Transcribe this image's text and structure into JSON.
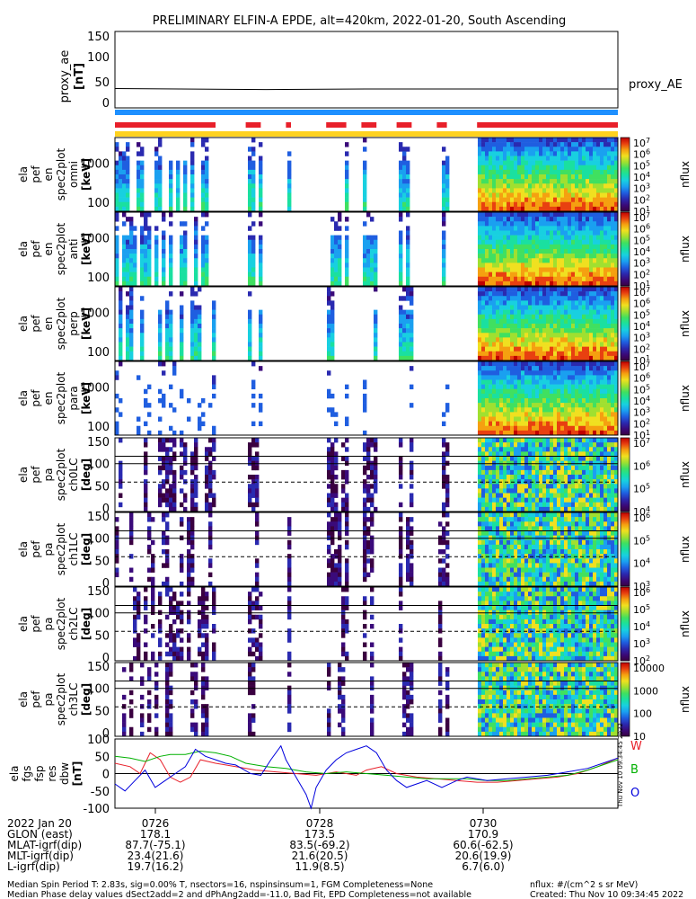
{
  "title": "PRELIMINARY ELFIN-A EPDE, alt=420km, 2022-01-20, South Ascending",
  "proxy_panel": {
    "ylabel": [
      "proxy_ae",
      "[nT]"
    ],
    "yticks": [
      "150",
      "100",
      "50",
      "0"
    ],
    "legend": "proxy_AE",
    "ylim": [
      0,
      150
    ],
    "line_color": "#000000",
    "values": [
      [
        0,
        38
      ],
      [
        0.3,
        36
      ],
      [
        0.5,
        37
      ],
      [
        1,
        37
      ]
    ]
  },
  "status_bars": {
    "bar1_color": "#1e90ff",
    "bar2_color": "#e8202a",
    "bar3_color": "#ffd21f",
    "red_segments": [
      [
        0,
        0.2
      ],
      [
        0.26,
        0.29
      ],
      [
        0.34,
        0.35
      ],
      [
        0.42,
        0.46
      ],
      [
        0.49,
        0.52
      ],
      [
        0.56,
        0.59
      ],
      [
        0.64,
        0.66
      ],
      [
        0.72,
        1.0
      ]
    ]
  },
  "spectrogram_panels": [
    {
      "ylabel": [
        "ela",
        "pef",
        "en",
        "spec2plot",
        "omni",
        "[keV]"
      ],
      "yticks": [
        "1000",
        "100"
      ],
      "cbar_label": "nflux",
      "cbar_ticks": [
        "10^7",
        "10^6",
        "10^5",
        "10^4",
        "10^3",
        "10^2",
        "10^1"
      ]
    },
    {
      "ylabel": [
        "ela",
        "pef",
        "en",
        "spec2plot",
        "anti",
        "[keV]"
      ],
      "yticks": [
        "1000",
        "100"
      ],
      "cbar_label": "nflux",
      "cbar_ticks": [
        "10^7",
        "10^6",
        "10^5",
        "10^4",
        "10^3",
        "10^2",
        "10^1"
      ]
    },
    {
      "ylabel": [
        "ela",
        "pef",
        "en",
        "spec2plot",
        "perp",
        "[keV]"
      ],
      "yticks": [
        "1000",
        "100"
      ],
      "cbar_label": "nflux",
      "cbar_ticks": [
        "10^7",
        "10^6",
        "10^5",
        "10^4",
        "10^3",
        "10^2",
        "10^1"
      ]
    },
    {
      "ylabel": [
        "ela",
        "pef",
        "en",
        "spec2plot",
        "para",
        "[keV]"
      ],
      "yticks": [
        "1000",
        "100"
      ],
      "cbar_label": "nflux",
      "cbar_ticks": [
        "10^7",
        "10^6",
        "10^5",
        "10^4",
        "10^3",
        "10^2",
        "10^1"
      ]
    },
    {
      "ylabel": [
        "ela",
        "pef",
        "pa",
        "spec2plot",
        "ch0LC",
        "[deg]"
      ],
      "yticks": [
        "150",
        "100",
        "50",
        "0"
      ],
      "cbar_label": "nflux",
      "cbar_ticks": [
        "10^7",
        "10^6",
        "10^5",
        "10^4"
      ]
    },
    {
      "ylabel": [
        "ela",
        "pef",
        "pa",
        "spec2plot",
        "ch1LC",
        "[deg]"
      ],
      "yticks": [
        "150",
        "100",
        "50",
        "0"
      ],
      "cbar_label": "nflux",
      "cbar_ticks": [
        "10^6",
        "10^5",
        "10^4",
        "10^3"
      ]
    },
    {
      "ylabel": [
        "ela",
        "pef",
        "pa",
        "spec2plot",
        "ch2LC",
        "[deg]"
      ],
      "yticks": [
        "150",
        "100",
        "50",
        "0"
      ],
      "cbar_label": "nflux",
      "cbar_ticks": [
        "10^6",
        "10^5",
        "10^4",
        "10^3",
        "10^2"
      ]
    },
    {
      "ylabel": [
        "ela",
        "pef",
        "pa",
        "spec2plot",
        "ch3LC",
        "[deg]"
      ],
      "yticks": [
        "150",
        "100",
        "50",
        "0"
      ],
      "cbar_label": "nflux",
      "cbar_ticks": [
        "10000",
        "1000",
        "100",
        "10"
      ]
    }
  ],
  "chart_data": {
    "type": "line",
    "title": "",
    "ylabel": [
      "ela",
      "fgs",
      "fsp",
      "res",
      "dbw",
      "[nT]"
    ],
    "ylim": [
      -100,
      100
    ],
    "yticks": [
      "100",
      "50",
      "0",
      "-50",
      "-100"
    ],
    "series": [
      {
        "name": "W",
        "color": "#e8202a",
        "values": [
          [
            0.0,
            30
          ],
          [
            0.03,
            20
          ],
          [
            0.05,
            0
          ],
          [
            0.07,
            60
          ],
          [
            0.09,
            40
          ],
          [
            0.11,
            -10
          ],
          [
            0.13,
            -25
          ],
          [
            0.15,
            -10
          ],
          [
            0.17,
            40
          ],
          [
            0.2,
            30
          ],
          [
            0.24,
            20
          ],
          [
            0.28,
            10
          ],
          [
            0.32,
            5
          ],
          [
            0.36,
            0
          ],
          [
            0.4,
            -5
          ],
          [
            0.44,
            5
          ],
          [
            0.48,
            -5
          ],
          [
            0.5,
            10
          ],
          [
            0.53,
            20
          ],
          [
            0.56,
            0
          ],
          [
            0.6,
            -10
          ],
          [
            0.64,
            -15
          ],
          [
            0.68,
            -20
          ],
          [
            0.72,
            -25
          ],
          [
            0.76,
            -25
          ],
          [
            0.8,
            -20
          ],
          [
            0.84,
            -15
          ],
          [
            0.88,
            -10
          ],
          [
            0.92,
            0
          ],
          [
            0.96,
            20
          ],
          [
            1.0,
            45
          ]
        ]
      },
      {
        "name": "B",
        "color": "#00b000",
        "values": [
          [
            0.0,
            50
          ],
          [
            0.03,
            45
          ],
          [
            0.06,
            35
          ],
          [
            0.09,
            50
          ],
          [
            0.11,
            55
          ],
          [
            0.14,
            55
          ],
          [
            0.17,
            65
          ],
          [
            0.2,
            60
          ],
          [
            0.23,
            50
          ],
          [
            0.26,
            30
          ],
          [
            0.3,
            20
          ],
          [
            0.34,
            15
          ],
          [
            0.38,
            5
          ],
          [
            0.42,
            0
          ],
          [
            0.46,
            5
          ],
          [
            0.5,
            0
          ],
          [
            0.54,
            -5
          ],
          [
            0.58,
            -10
          ],
          [
            0.62,
            -15
          ],
          [
            0.66,
            -15
          ],
          [
            0.7,
            -15
          ],
          [
            0.74,
            -20
          ],
          [
            0.78,
            -20
          ],
          [
            0.82,
            -15
          ],
          [
            0.86,
            -10
          ],
          [
            0.9,
            -5
          ],
          [
            0.94,
            10
          ],
          [
            0.97,
            25
          ],
          [
            1.0,
            40
          ]
        ]
      },
      {
        "name": "O",
        "color": "#0000dd",
        "values": [
          [
            0.0,
            -30
          ],
          [
            0.02,
            -50
          ],
          [
            0.04,
            -20
          ],
          [
            0.06,
            10
          ],
          [
            0.08,
            -40
          ],
          [
            0.1,
            -20
          ],
          [
            0.12,
            0
          ],
          [
            0.14,
            20
          ],
          [
            0.16,
            70
          ],
          [
            0.18,
            50
          ],
          [
            0.2,
            40
          ],
          [
            0.22,
            30
          ],
          [
            0.24,
            25
          ],
          [
            0.27,
            0
          ],
          [
            0.29,
            -5
          ],
          [
            0.31,
            40
          ],
          [
            0.33,
            80
          ],
          [
            0.34,
            40
          ],
          [
            0.36,
            -10
          ],
          [
            0.38,
            -60
          ],
          [
            0.39,
            -100
          ],
          [
            0.4,
            -40
          ],
          [
            0.42,
            10
          ],
          [
            0.44,
            40
          ],
          [
            0.46,
            60
          ],
          [
            0.48,
            70
          ],
          [
            0.5,
            80
          ],
          [
            0.52,
            60
          ],
          [
            0.54,
            10
          ],
          [
            0.56,
            -20
          ],
          [
            0.58,
            -40
          ],
          [
            0.6,
            -30
          ],
          [
            0.62,
            -20
          ],
          [
            0.65,
            -40
          ],
          [
            0.68,
            -20
          ],
          [
            0.7,
            -10
          ],
          [
            0.74,
            -20
          ],
          [
            0.78,
            -15
          ],
          [
            0.82,
            -10
          ],
          [
            0.86,
            -5
          ],
          [
            0.9,
            5
          ],
          [
            0.94,
            15
          ],
          [
            0.97,
            30
          ],
          [
            1.0,
            45
          ]
        ]
      }
    ]
  },
  "xaxis": {
    "rows": [
      {
        "label": "2022 Jan 20",
        "values": [
          "0726",
          "0728",
          "0730"
        ]
      },
      {
        "label": "GLON (east)",
        "values": [
          "178.1",
          "173.5",
          "170.9"
        ]
      },
      {
        "label": "MLAT-igrf(dip)",
        "values": [
          "87.7(-75.1)",
          "83.5(-69.2)",
          "60.6(-62.5)"
        ]
      },
      {
        "label": "MLT-igrf(dip)",
        "values": [
          "23.4(21.6)",
          "21.6(20.5)",
          "20.6(19.9)"
        ]
      },
      {
        "label": "L-igrf(dip)",
        "values": [
          "19.7(16.2)",
          "11.9(8.5)",
          "6.7(6.0)"
        ]
      }
    ]
  },
  "footer": {
    "line1": "Median Spin Period T: 2.83s, sig=0.00% T, nsectors=16, nspinsinsum=1, FGM Completeness=None",
    "line2": "Median Phase delay values dSect2add=2 and dPhAng2add=-11.0, Bad Fit, EPD Completeness=not available",
    "units": "nflux: #/(cm^2 s sr MeV)",
    "created": "Created: Thu Nov 10 09:34:45 2022",
    "side_stamp": "Thu Nov 10 09:34:45 2022"
  }
}
